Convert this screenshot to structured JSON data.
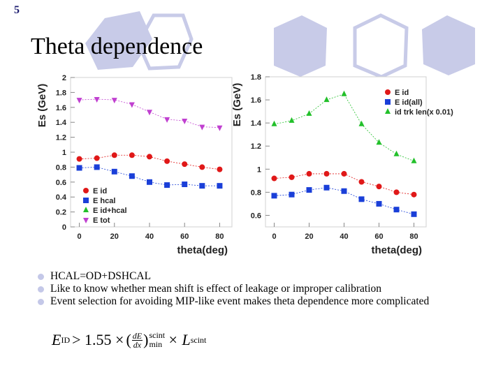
{
  "slide_number": "5",
  "title": "Theta dependence",
  "bullets": [
    "HCAL=OD+DSHCAL",
    "Like to know whether mean shift is effect of leakage or improper calibration",
    "Event selection for avoiding MIP-like event makes theta dependence more complicated"
  ],
  "formula": {
    "lhs": "E",
    "lhs_sub": "ID",
    "op": "> 1.55 ×",
    "frac_num": "dE",
    "frac_den": "dx",
    "sup": "scint",
    "sub": "min",
    "times": "× L",
    "l_sub": "scint"
  },
  "colors": {
    "red": "#e01818",
    "blue": "#1a3fd8",
    "green": "#22c02a",
    "magenta": "#c040d0",
    "hex": "#c8cbe8"
  },
  "chart_data": [
    {
      "type": "scatter",
      "xlabel": "theta(deg)",
      "ylabel": "Es (GeV)",
      "xlim": [
        -5,
        87
      ],
      "ylim": [
        0,
        2
      ],
      "xticks": [
        "0",
        "20",
        "40",
        "60",
        "80"
      ],
      "yticks": [
        "0",
        "0.2",
        "0.4",
        "0.6",
        "0.8",
        "1",
        "1.2",
        "1.4",
        "1.6",
        "1.8",
        "2"
      ],
      "x": [
        0,
        10,
        20,
        30,
        40,
        50,
        60,
        70,
        80
      ],
      "legend_position": "bottom-left",
      "series": [
        {
          "name": "E id",
          "marker": "circle",
          "color": "#e01818",
          "values": [
            0.91,
            0.92,
            0.96,
            0.96,
            0.94,
            0.88,
            0.84,
            0.8,
            0.77
          ]
        },
        {
          "name": "E hcal",
          "marker": "square",
          "color": "#1a3fd8",
          "values": [
            0.79,
            0.8,
            0.74,
            0.68,
            0.6,
            0.56,
            0.57,
            0.55,
            0.55
          ]
        },
        {
          "name": "E id+hcal",
          "marker": "triangle",
          "color": "#22c02a",
          "values": []
        },
        {
          "name": "E tot",
          "marker": "triangle-down",
          "color": "#c040d0",
          "values": [
            1.7,
            1.71,
            1.7,
            1.64,
            1.54,
            1.44,
            1.42,
            1.34,
            1.33
          ]
        }
      ]
    },
    {
      "type": "scatter",
      "xlabel": "theta(deg)",
      "ylabel": "Es (GeV)",
      "xlim": [
        -5,
        87
      ],
      "ylim": [
        0.5,
        1.8
      ],
      "xticks": [
        "0",
        "20",
        "40",
        "60",
        "80"
      ],
      "yticks": [
        "0.6",
        "0.8",
        "1",
        "1.2",
        "1.4",
        "1.6",
        "1.8"
      ],
      "x": [
        0,
        10,
        20,
        30,
        40,
        50,
        60,
        70,
        80
      ],
      "legend_position": "top-right",
      "series": [
        {
          "name": "E id",
          "marker": "circle",
          "color": "#e01818",
          "values": [
            0.92,
            0.93,
            0.96,
            0.96,
            0.96,
            0.89,
            0.85,
            0.8,
            0.78
          ]
        },
        {
          "name": "E id(all)",
          "marker": "square",
          "color": "#1a3fd8",
          "values": [
            0.77,
            0.78,
            0.82,
            0.84,
            0.81,
            0.74,
            0.7,
            0.65,
            0.61
          ]
        },
        {
          "name": "id trk len(x 0.01)",
          "marker": "triangle",
          "color": "#22c02a",
          "values": [
            1.39,
            1.42,
            1.48,
            1.6,
            1.65,
            1.39,
            1.23,
            1.13,
            1.07
          ]
        }
      ]
    }
  ]
}
